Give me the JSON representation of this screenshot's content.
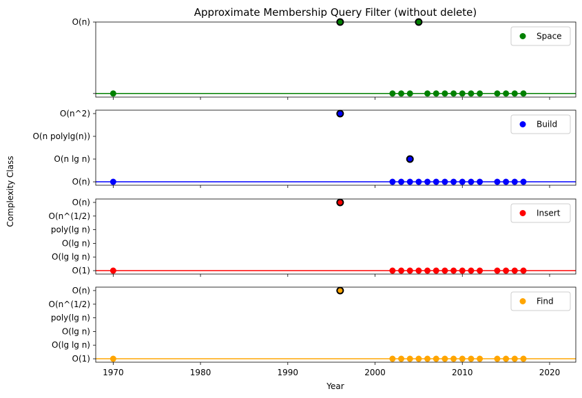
{
  "chart_data": {
    "type": "scatter",
    "title": "Approximate Membership Query Filter (without delete)",
    "xlabel": "Year",
    "ylabel": "Complexity Class",
    "xlim": [
      1968,
      2023
    ],
    "x_ticks": [
      1970,
      1980,
      1990,
      2000,
      2010,
      2020
    ],
    "panels": [
      {
        "name": "Space",
        "color": "#008000",
        "y_categories": [
          "",
          "O(n)"
        ],
        "ylim": [
          -0.05,
          1.0
        ],
        "baseline": 0,
        "points": [
          {
            "x": 1970,
            "y": 0
          },
          {
            "x": 1996,
            "y": 1,
            "highlight": true
          },
          {
            "x": 2002,
            "y": 0
          },
          {
            "x": 2003,
            "y": 0
          },
          {
            "x": 2004,
            "y": 0
          },
          {
            "x": 2005,
            "y": 1,
            "highlight": true
          },
          {
            "x": 2006,
            "y": 0
          },
          {
            "x": 2007,
            "y": 0
          },
          {
            "x": 2008,
            "y": 0
          },
          {
            "x": 2009,
            "y": 0
          },
          {
            "x": 2010,
            "y": 0
          },
          {
            "x": 2011,
            "y": 0
          },
          {
            "x": 2012,
            "y": 0
          },
          {
            "x": 2014,
            "y": 0
          },
          {
            "x": 2015,
            "y": 0
          },
          {
            "x": 2016,
            "y": 0
          },
          {
            "x": 2017,
            "y": 0
          }
        ]
      },
      {
        "name": "Build",
        "color": "#0000ff",
        "y_categories": [
          "O(n)",
          "O(n lg n)",
          "O(n polylg(n))",
          "O(n^2)"
        ],
        "ylim": [
          -0.15,
          3.15
        ],
        "baseline": 0,
        "points": [
          {
            "x": 1970,
            "y": 0
          },
          {
            "x": 1996,
            "y": 3,
            "highlight": true
          },
          {
            "x": 2002,
            "y": 0
          },
          {
            "x": 2003,
            "y": 0
          },
          {
            "x": 2004,
            "y": 1,
            "highlight": true
          },
          {
            "x": 2004,
            "y": 0
          },
          {
            "x": 2005,
            "y": 0
          },
          {
            "x": 2006,
            "y": 0
          },
          {
            "x": 2007,
            "y": 0
          },
          {
            "x": 2008,
            "y": 0
          },
          {
            "x": 2009,
            "y": 0
          },
          {
            "x": 2010,
            "y": 0
          },
          {
            "x": 2011,
            "y": 0
          },
          {
            "x": 2012,
            "y": 0
          },
          {
            "x": 2014,
            "y": 0
          },
          {
            "x": 2015,
            "y": 0
          },
          {
            "x": 2016,
            "y": 0
          },
          {
            "x": 2017,
            "y": 0
          }
        ]
      },
      {
        "name": "Insert",
        "color": "#ff0000",
        "y_categories": [
          "O(1)",
          "O(lg lg n)",
          "O(lg n)",
          "poly(lg n)",
          "O(n^(1/2)",
          "O(n)"
        ],
        "ylim": [
          -0.25,
          5.25
        ],
        "baseline": 0,
        "points": [
          {
            "x": 1970,
            "y": 0
          },
          {
            "x": 1996,
            "y": 5,
            "highlight": true
          },
          {
            "x": 2002,
            "y": 0
          },
          {
            "x": 2003,
            "y": 0
          },
          {
            "x": 2004,
            "y": 0
          },
          {
            "x": 2005,
            "y": 0
          },
          {
            "x": 2006,
            "y": 0
          },
          {
            "x": 2007,
            "y": 0
          },
          {
            "x": 2008,
            "y": 0
          },
          {
            "x": 2009,
            "y": 0
          },
          {
            "x": 2010,
            "y": 0
          },
          {
            "x": 2011,
            "y": 0
          },
          {
            "x": 2012,
            "y": 0
          },
          {
            "x": 2014,
            "y": 0
          },
          {
            "x": 2015,
            "y": 0
          },
          {
            "x": 2016,
            "y": 0
          },
          {
            "x": 2017,
            "y": 0
          }
        ]
      },
      {
        "name": "Find",
        "color": "#ffa500",
        "y_categories": [
          "O(1)",
          "O(lg lg n)",
          "O(lg n)",
          "poly(lg n)",
          "O(n^(1/2)",
          "O(n)"
        ],
        "ylim": [
          -0.25,
          5.25
        ],
        "baseline": 0,
        "points": [
          {
            "x": 1970,
            "y": 0
          },
          {
            "x": 1996,
            "y": 5,
            "highlight": true
          },
          {
            "x": 2002,
            "y": 0
          },
          {
            "x": 2003,
            "y": 0
          },
          {
            "x": 2004,
            "y": 0
          },
          {
            "x": 2005,
            "y": 0
          },
          {
            "x": 2006,
            "y": 0
          },
          {
            "x": 2007,
            "y": 0
          },
          {
            "x": 2008,
            "y": 0
          },
          {
            "x": 2009,
            "y": 0
          },
          {
            "x": 2010,
            "y": 0
          },
          {
            "x": 2011,
            "y": 0
          },
          {
            "x": 2012,
            "y": 0
          },
          {
            "x": 2014,
            "y": 0
          },
          {
            "x": 2015,
            "y": 0
          },
          {
            "x": 2016,
            "y": 0
          },
          {
            "x": 2017,
            "y": 0
          }
        ]
      }
    ],
    "legend_position": "top-right",
    "grid": false
  }
}
